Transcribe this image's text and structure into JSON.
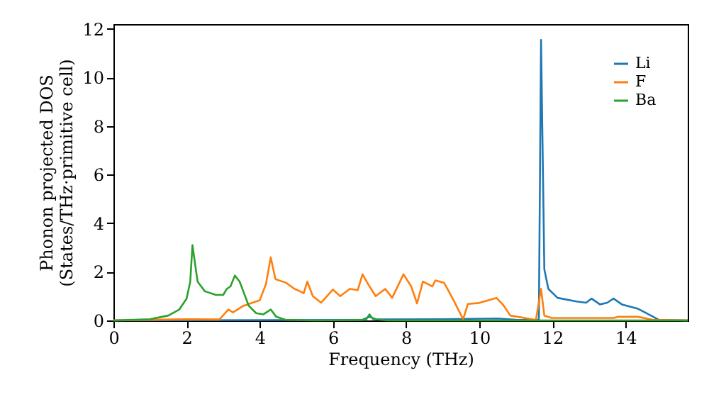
{
  "chart_data": {
    "type": "line",
    "xlabel": "Frequency (THz)",
    "ylabel": "Phonon projected DOS\n(States/THz·primitive cell)",
    "xlim": [
      0,
      15.7
    ],
    "ylim": [
      0,
      12.2
    ],
    "xticks": [
      0,
      2,
      4,
      6,
      8,
      10,
      12,
      14
    ],
    "yticks": [
      0,
      2,
      4,
      6,
      8,
      10,
      12
    ],
    "grid": false,
    "legend": "top right",
    "marker": "none",
    "line_style": "solid",
    "series": [
      {
        "name": "Li",
        "color": "#1f77b4",
        "x": [
          0,
          6.8,
          7.0,
          7.2,
          9.0,
          10.5,
          11.0,
          11.63,
          11.69,
          11.78,
          11.89,
          12.14,
          12.66,
          12.92,
          13.07,
          13.3,
          13.5,
          13.67,
          13.9,
          14.34,
          14.53,
          14.92,
          15.7
        ],
        "values": [
          0,
          0.02,
          0.15,
          0.04,
          0.05,
          0.08,
          0.03,
          0.02,
          11.55,
          2.1,
          1.3,
          0.93,
          0.78,
          0.73,
          0.9,
          0.66,
          0.73,
          0.9,
          0.66,
          0.48,
          0.33,
          0.02,
          0
        ]
      },
      {
        "name": "F",
        "color": "#ff7f0e",
        "x": [
          0,
          2.0,
          2.9,
          3.14,
          3.27,
          3.55,
          4.0,
          4.17,
          4.3,
          4.43,
          4.72,
          4.95,
          5.1,
          5.2,
          5.3,
          5.45,
          5.68,
          6.0,
          6.2,
          6.46,
          6.68,
          6.81,
          6.98,
          7.17,
          7.43,
          7.62,
          7.93,
          8.14,
          8.3,
          8.46,
          8.72,
          8.8,
          9.04,
          9.3,
          9.56,
          9.69,
          10.0,
          10.47,
          10.66,
          10.85,
          11.55,
          11.69,
          11.78,
          11.98,
          13.68,
          13.8,
          14.34,
          14.73,
          15.7
        ],
        "values": [
          0,
          0.05,
          0.04,
          0.45,
          0.33,
          0.6,
          0.83,
          1.5,
          2.6,
          1.7,
          1.55,
          1.3,
          1.2,
          1.12,
          1.6,
          1.0,
          0.73,
          1.27,
          1.0,
          1.3,
          1.25,
          1.9,
          1.45,
          1.0,
          1.3,
          0.93,
          1.9,
          1.4,
          0.7,
          1.6,
          1.4,
          1.65,
          1.55,
          0.83,
          0.05,
          0.68,
          0.72,
          0.93,
          0.63,
          0.2,
          0.02,
          1.3,
          0.2,
          0.1,
          0.1,
          0.15,
          0.15,
          0.03,
          0
        ]
      },
      {
        "name": "Ba",
        "color": "#2ca02c",
        "x": [
          0,
          1.0,
          1.5,
          1.8,
          2.0,
          2.1,
          2.16,
          2.3,
          2.5,
          2.8,
          3.0,
          3.1,
          3.2,
          3.32,
          3.45,
          3.55,
          3.7,
          3.9,
          4.1,
          4.3,
          4.45,
          4.7,
          5.5,
          6.9,
          7.0,
          7.1,
          7.5,
          15.7
        ],
        "values": [
          0,
          0.05,
          0.2,
          0.45,
          0.9,
          1.6,
          3.1,
          1.6,
          1.2,
          1.05,
          1.05,
          1.3,
          1.4,
          1.85,
          1.6,
          1.2,
          0.6,
          0.3,
          0.25,
          0.45,
          0.15,
          0.03,
          0,
          0.02,
          0.25,
          0.05,
          0,
          0
        ]
      }
    ]
  }
}
